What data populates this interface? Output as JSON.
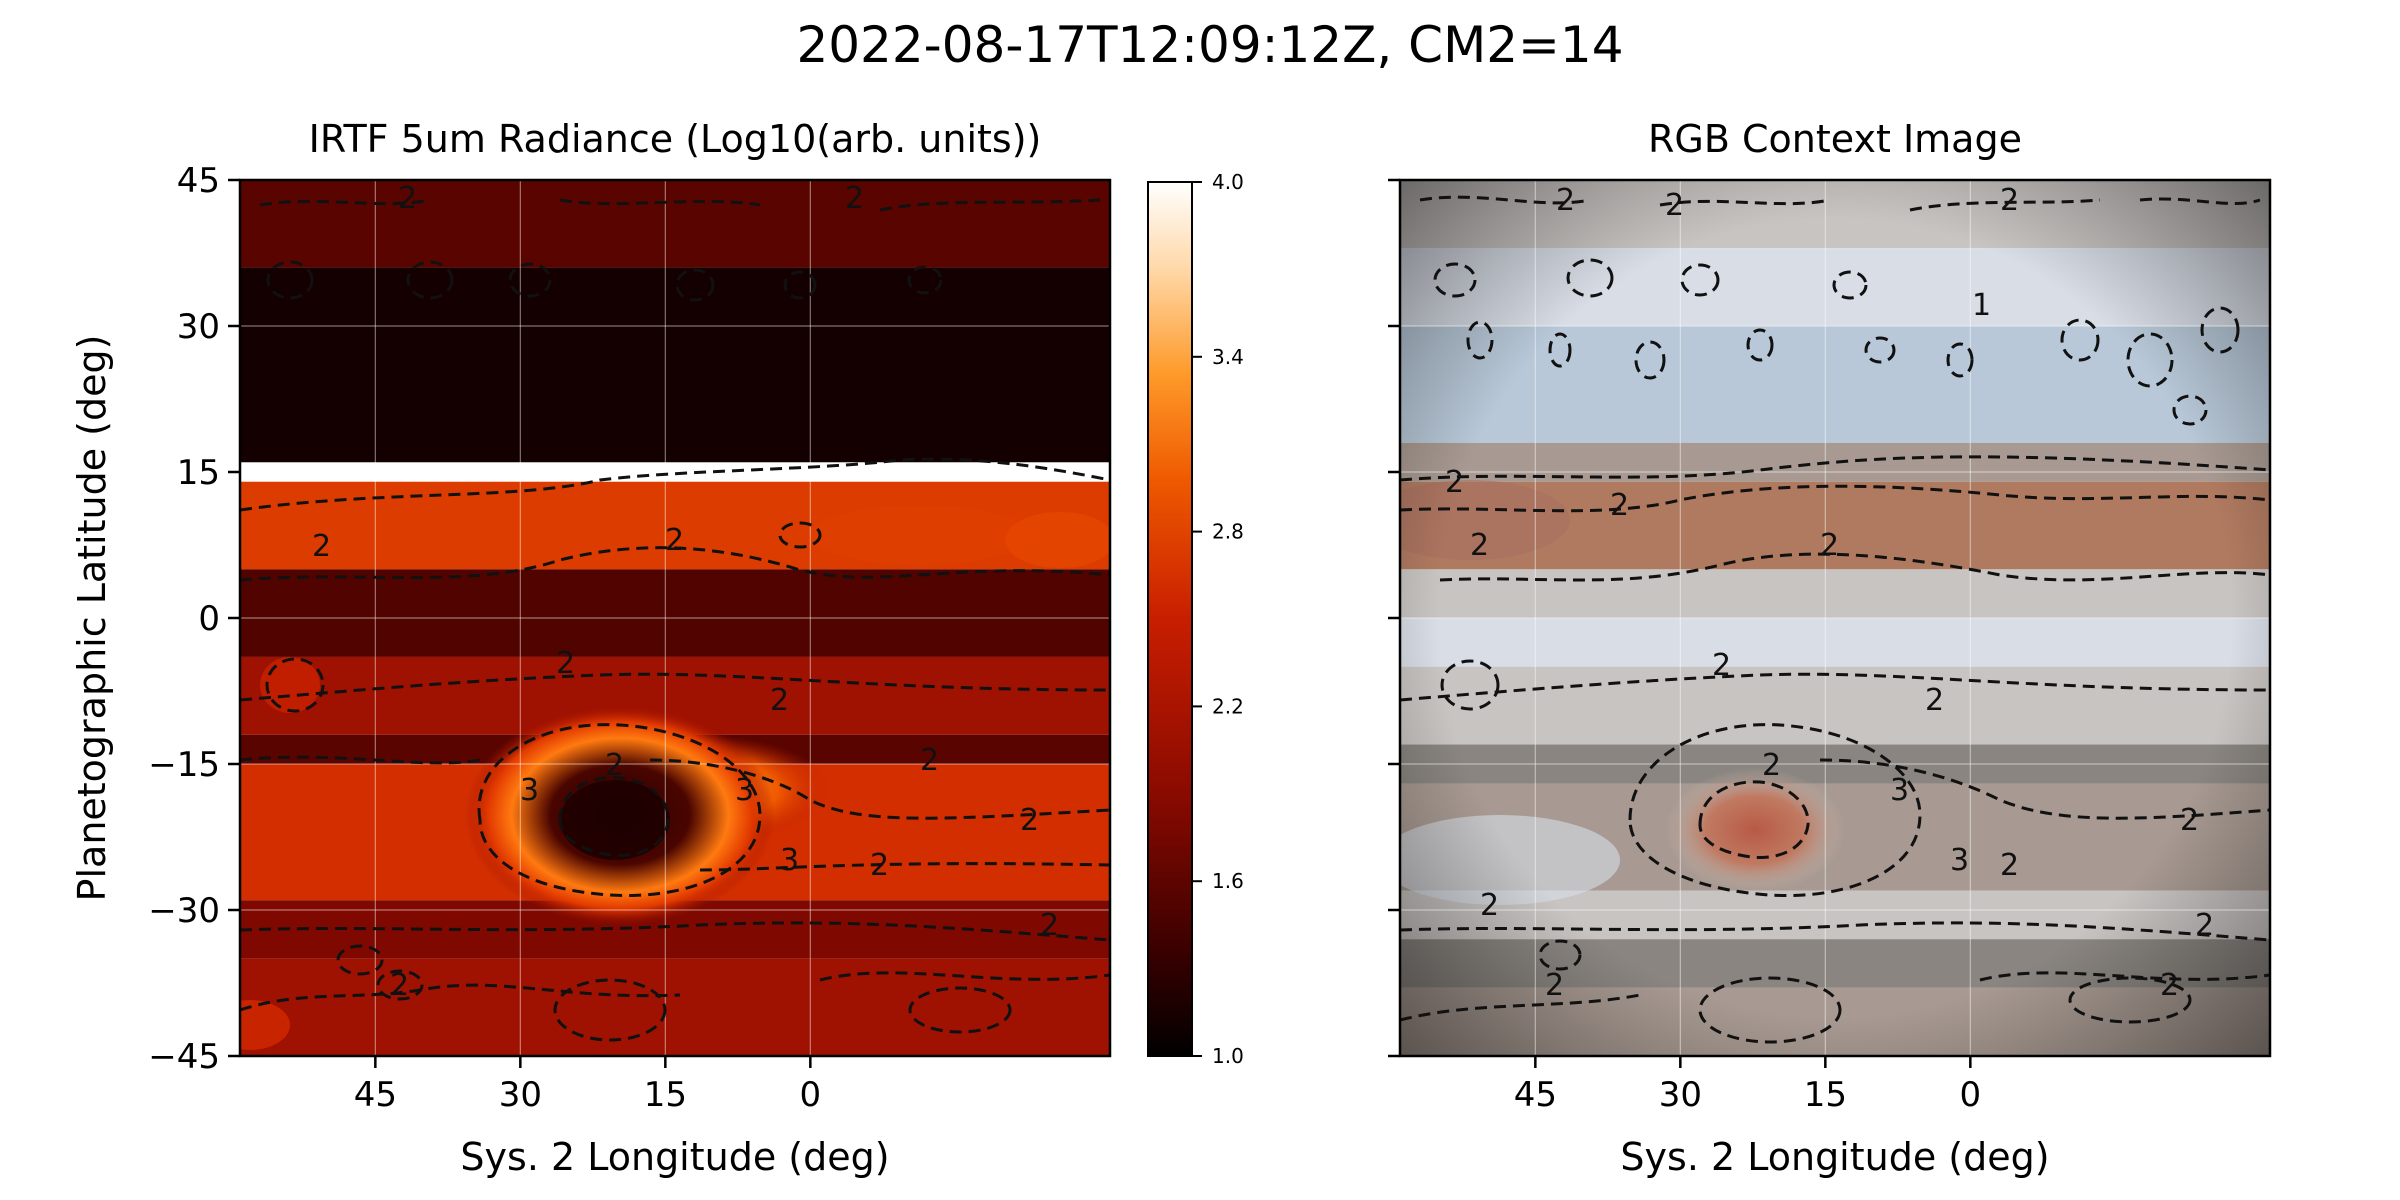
{
  "figure_title": "2022-08-17T12:09:12Z, CM2=14",
  "colors": {
    "colormap_gist_heat": [
      "#000000",
      "#3a0000",
      "#8a0a00",
      "#c81e00",
      "#ef5a00",
      "#fe9a2a",
      "#ffd8a8",
      "#ffffff"
    ],
    "rgb_context_palette": [
      "#c8c4c2",
      "#a89a92",
      "#b07a60",
      "#d8dde6",
      "#b8c8d8",
      "#8a8580",
      "#b86a55"
    ],
    "contour": "#111111"
  },
  "chart_data": [
    {
      "type": "heatmap",
      "title": "IRTF 5um Radiance (Log10(arb. units))",
      "xlabel": "Sys. 2 Longitude (deg)",
      "ylabel": "Planetographic Latitude (deg)",
      "xlim": [
        59,
        -31
      ],
      "ylim": [
        -45,
        45
      ],
      "xticks": [
        45,
        30,
        15,
        0
      ],
      "yticks": [
        45,
        30,
        15,
        0,
        -15,
        -30,
        -45
      ],
      "ytick_labels": [
        "45",
        "30",
        "15",
        "0",
        "−15",
        "−30",
        "−45"
      ],
      "colorbar": {
        "min": 1.0,
        "max": 4.0,
        "ticks": [
          "1.0",
          "1.6",
          "2.2",
          "2.8",
          "3.4",
          "4.0"
        ]
      },
      "grid": true,
      "bands": [
        {
          "lat": [
            36,
            45
          ],
          "value": 1.6
        },
        {
          "lat": [
            16,
            36
          ],
          "value": 1.15
        },
        {
          "lat": [
            5,
            14
          ],
          "value": 2.5
        },
        {
          "lat": [
            -4,
            5
          ],
          "value": 1.55
        },
        {
          "lat": [
            -12,
            -4
          ],
          "value": 2.0
        },
        {
          "lat": [
            -15,
            -12
          ],
          "value": 1.6
        },
        {
          "lat": [
            -29,
            -15
          ],
          "value": 2.4
        },
        {
          "lat": [
            -35,
            -29
          ],
          "value": 1.8
        },
        {
          "lat": [
            -45,
            -35
          ],
          "value": 2.0
        }
      ],
      "features": [
        {
          "name": "bright ring",
          "lon": 22,
          "lat": -21,
          "value": 3.0
        },
        {
          "name": "dark core",
          "lon": 22,
          "lat": -21,
          "value": 1.3
        },
        {
          "name": "bright arc",
          "lon": 10,
          "lat": -17,
          "value": 3.1
        }
      ],
      "contour_levels": [
        "2",
        "3"
      ]
    },
    {
      "type": "heatmap",
      "title": "RGB Context Image",
      "xlabel": "Sys. 2 Longitude (deg)",
      "xlim": [
        59,
        -31
      ],
      "ylim": [
        -45,
        45
      ],
      "xticks": [
        45,
        30,
        15,
        0
      ],
      "grid": true,
      "features": [
        {
          "name": "red oval",
          "lon": 22,
          "lat": -21
        }
      ],
      "contour_levels": [
        "2",
        "3",
        "1"
      ]
    }
  ]
}
